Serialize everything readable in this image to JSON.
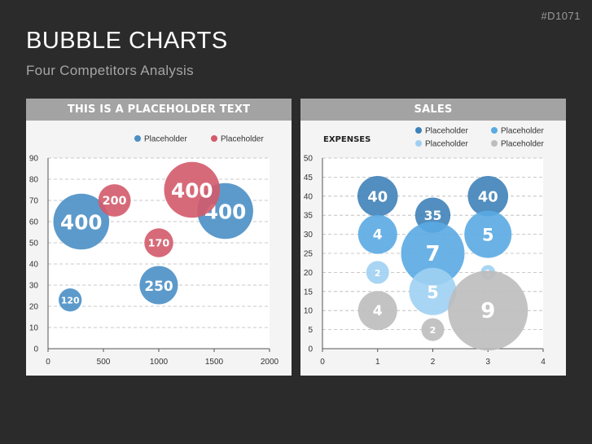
{
  "slide_id": "#D1071",
  "title": "BUBBLE CHARTS",
  "subtitle": "Four Competitors Analysis",
  "chart_data": [
    {
      "type": "scatter",
      "title": "THIS IS A PLACEHOLDER TEXT",
      "xlim": [
        0,
        2000
      ],
      "ylim": [
        0,
        90
      ],
      "x_ticks": [
        0,
        500,
        1000,
        1500,
        2000
      ],
      "y_ticks": [
        0,
        10,
        20,
        30,
        40,
        50,
        60,
        70,
        80,
        90
      ],
      "grid": true,
      "legend_position": "top-right",
      "series": [
        {
          "name": "Placeholder",
          "color": "#4a8fc5",
          "points": [
            {
              "x": 300,
              "y": 60,
              "size": 400
            },
            {
              "x": 200,
              "y": 23,
              "size": 120
            },
            {
              "x": 1000,
              "y": 30,
              "size": 250
            },
            {
              "x": 1600,
              "y": 65,
              "size": 400
            }
          ]
        },
        {
          "name": "Placeholder",
          "color": "#d35a6a",
          "points": [
            {
              "x": 600,
              "y": 70,
              "size": 200
            },
            {
              "x": 1000,
              "y": 50,
              "size": 170
            },
            {
              "x": 1300,
              "y": 75,
              "size": 400
            }
          ]
        }
      ]
    },
    {
      "type": "scatter",
      "title": "SALES",
      "ylabel": "EXPENSES",
      "xlim": [
        0,
        4
      ],
      "ylim": [
        0,
        50
      ],
      "x_ticks": [
        0,
        1,
        2,
        3,
        4
      ],
      "y_ticks": [
        0,
        5,
        10,
        15,
        20,
        25,
        30,
        35,
        40,
        45,
        50
      ],
      "grid": true,
      "legend_position": "top-right",
      "series": [
        {
          "name": "Placeholder",
          "color": "#3f82b8",
          "points": [
            {
              "x": 1,
              "y": 40,
              "size": 40
            },
            {
              "x": 2,
              "y": 35,
              "size": 35
            },
            {
              "x": 3,
              "y": 40,
              "size": 40
            }
          ]
        },
        {
          "name": "Placeholder",
          "color": "#5aaae3",
          "points": [
            {
              "x": 1,
              "y": 30,
              "size": 4
            },
            {
              "x": 2,
              "y": 25,
              "size": 7
            },
            {
              "x": 3,
              "y": 30,
              "size": 5
            }
          ]
        },
        {
          "name": "Placeholder",
          "color": "#9fd0f2",
          "points": [
            {
              "x": 1,
              "y": 20,
              "size": 2
            },
            {
              "x": 2,
              "y": 15,
              "size": 5
            },
            {
              "x": 3,
              "y": 20,
              "size": 1
            }
          ]
        },
        {
          "name": "Placeholder",
          "color": "#bdbdbd",
          "points": [
            {
              "x": 1,
              "y": 10,
              "size": 4
            },
            {
              "x": 2,
              "y": 5,
              "size": 2
            },
            {
              "x": 3,
              "y": 10,
              "size": 9
            }
          ]
        }
      ]
    }
  ]
}
